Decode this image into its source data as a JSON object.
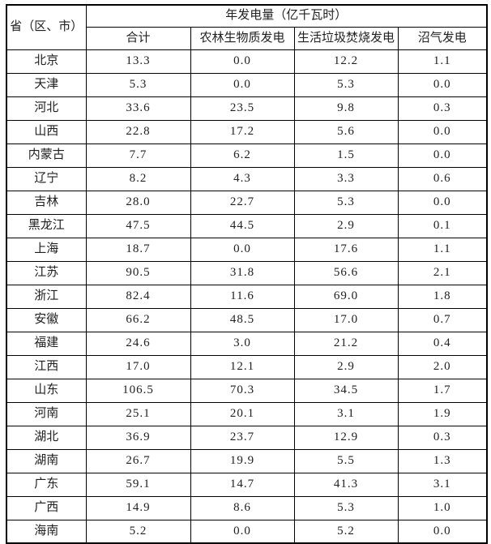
{
  "table": {
    "corner_header": "省（区、市）",
    "group_header": "年发电量（亿千瓦时）",
    "sub_headers": [
      "合计",
      "农林生物质发电",
      "生活垃圾焚烧发电",
      "沼气发电"
    ],
    "rows": [
      {
        "province": "北京",
        "values": [
          "13.3",
          "0.0",
          "12.2",
          "1.1"
        ]
      },
      {
        "province": "天津",
        "values": [
          "5.3",
          "0.0",
          "5.3",
          "0.0"
        ]
      },
      {
        "province": "河北",
        "values": [
          "33.6",
          "23.5",
          "9.8",
          "0.3"
        ]
      },
      {
        "province": "山西",
        "values": [
          "22.8",
          "17.2",
          "5.6",
          "0.0"
        ]
      },
      {
        "province": "内蒙古",
        "values": [
          "7.7",
          "6.2",
          "1.5",
          "0.0"
        ]
      },
      {
        "province": "辽宁",
        "values": [
          "8.2",
          "4.3",
          "3.3",
          "0.6"
        ]
      },
      {
        "province": "吉林",
        "values": [
          "28.0",
          "22.7",
          "5.3",
          "0.0"
        ]
      },
      {
        "province": "黑龙江",
        "values": [
          "47.5",
          "44.5",
          "2.9",
          "0.1"
        ]
      },
      {
        "province": "上海",
        "values": [
          "18.7",
          "0.0",
          "17.6",
          "1.1"
        ]
      },
      {
        "province": "江苏",
        "values": [
          "90.5",
          "31.8",
          "56.6",
          "2.1"
        ]
      },
      {
        "province": "浙江",
        "values": [
          "82.4",
          "11.6",
          "69.0",
          "1.8"
        ]
      },
      {
        "province": "安徽",
        "values": [
          "66.2",
          "48.5",
          "17.0",
          "0.7"
        ]
      },
      {
        "province": "福建",
        "values": [
          "24.6",
          "3.0",
          "21.2",
          "0.4"
        ]
      },
      {
        "province": "江西",
        "values": [
          "17.0",
          "12.1",
          "2.9",
          "2.0"
        ]
      },
      {
        "province": "山东",
        "values": [
          "106.5",
          "70.3",
          "34.5",
          "1.7"
        ]
      },
      {
        "province": "河南",
        "values": [
          "25.1",
          "20.1",
          "3.1",
          "1.9"
        ]
      },
      {
        "province": "湖北",
        "values": [
          "36.9",
          "23.7",
          "12.9",
          "0.3"
        ]
      },
      {
        "province": "湖南",
        "values": [
          "26.7",
          "19.9",
          "5.5",
          "1.3"
        ]
      },
      {
        "province": "广东",
        "values": [
          "59.1",
          "14.7",
          "41.3",
          "3.1"
        ]
      },
      {
        "province": "广西",
        "values": [
          "14.9",
          "8.6",
          "5.3",
          "1.0"
        ]
      },
      {
        "province": "海南",
        "values": [
          "5.2",
          "0.0",
          "5.2",
          "0.0"
        ]
      }
    ]
  },
  "colors": {
    "border": "#000000",
    "text": "#212121",
    "background": "#ffffff"
  }
}
